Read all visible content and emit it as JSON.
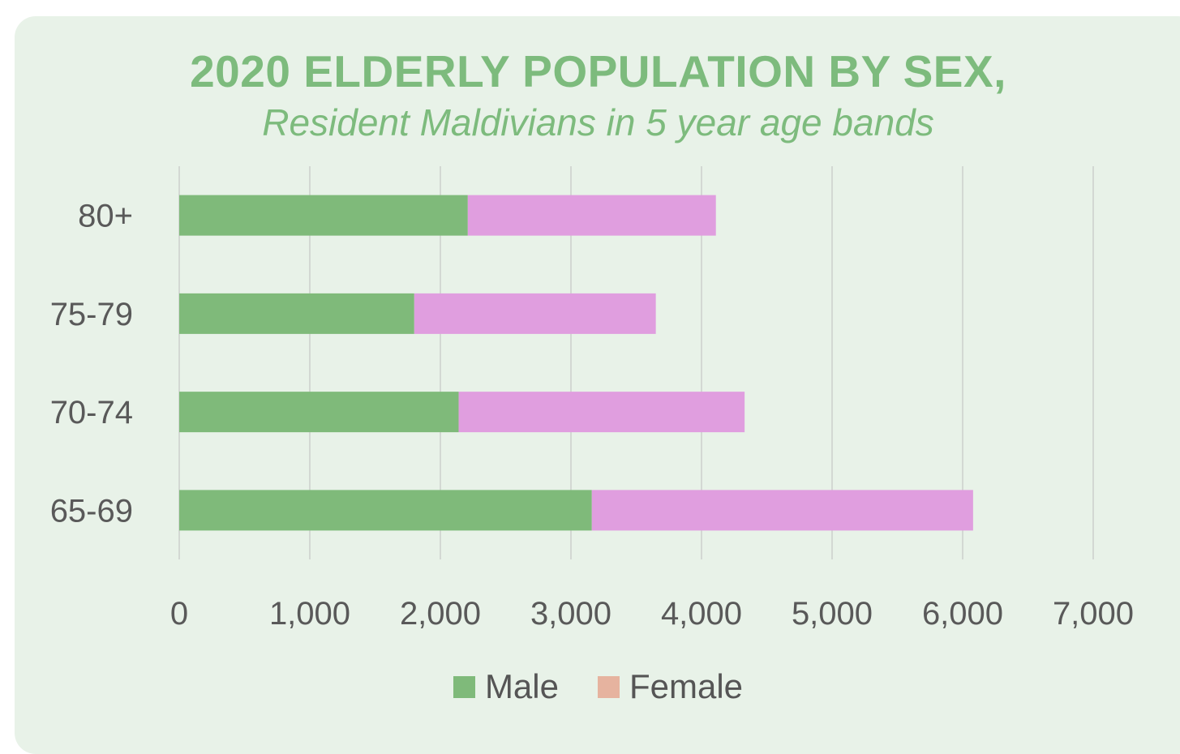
{
  "chart_data": {
    "type": "bar",
    "orientation": "horizontal",
    "stacked": true,
    "title": "2020 ELDERLY POPULATION BY SEX,",
    "subtitle": "Resident Maldivians in 5 year age bands",
    "categories": [
      "65-69",
      "70-74",
      "75-79",
      "80+"
    ],
    "series": [
      {
        "name": "Male",
        "values": [
          3160,
          2140,
          1800,
          2210
        ]
      },
      {
        "name": "Female",
        "values": [
          2920,
          2190,
          1850,
          1900
        ]
      }
    ],
    "xlim": [
      0,
      7000
    ],
    "xticks": [
      "0",
      "1,000",
      "2,000",
      "3,000",
      "4,000",
      "5,000",
      "6,000",
      "7,000"
    ],
    "grid": "vertical",
    "legend": "bottom",
    "bar_colors": [
      "#7fba7a",
      "#e09edf"
    ],
    "legend_colors": [
      "#7fba7a",
      "#e6b39f"
    ],
    "title_color": "#7dbb7d",
    "background": "#e8f2e8"
  }
}
